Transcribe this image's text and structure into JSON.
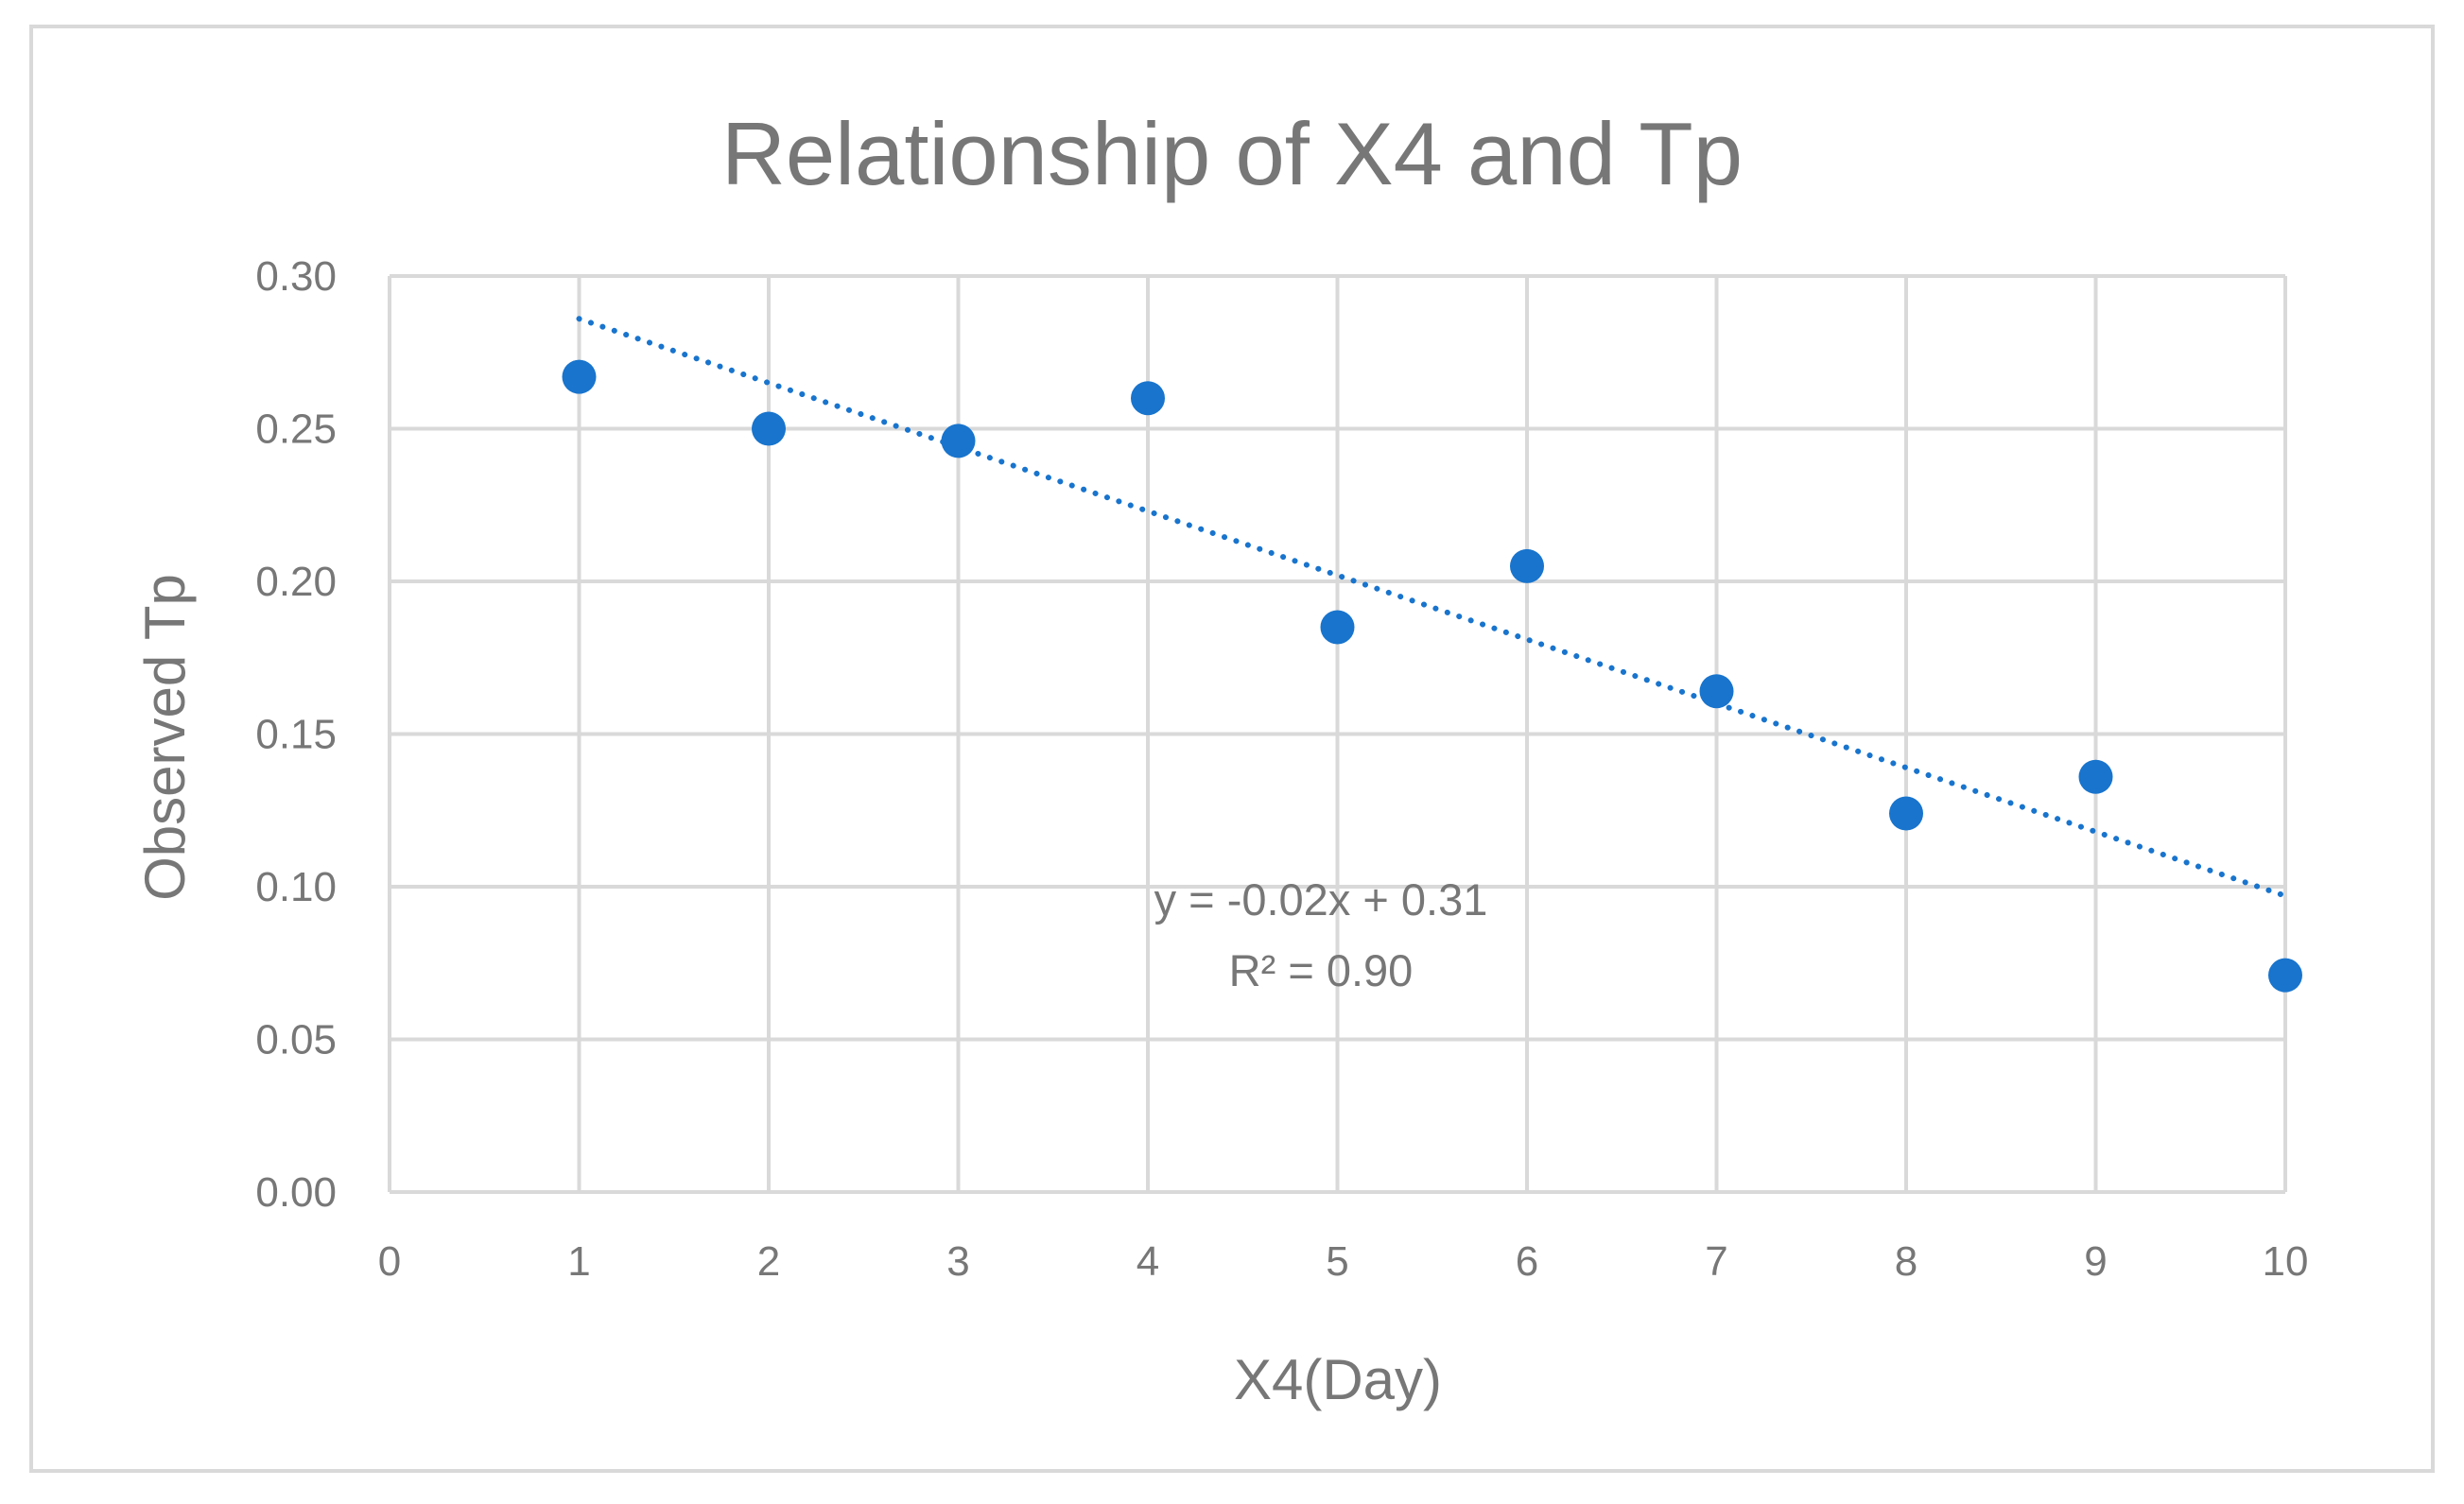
{
  "chart_data": {
    "type": "scatter",
    "title": "Relationship of X4 and Tp",
    "xlabel": "X4(Day)",
    "ylabel": "Observed Tp",
    "xlim": [
      0,
      10
    ],
    "ylim": [
      0,
      0.3
    ],
    "x_ticks": [
      "0",
      "1",
      "2",
      "3",
      "4",
      "5",
      "6",
      "7",
      "8",
      "9",
      "10"
    ],
    "y_ticks": [
      "0.00",
      "0.05",
      "0.10",
      "0.15",
      "0.20",
      "0.25",
      "0.30"
    ],
    "grid": true,
    "series": [
      {
        "points": [
          {
            "x": 1,
            "y": 0.267
          },
          {
            "x": 2,
            "y": 0.25
          },
          {
            "x": 3,
            "y": 0.246
          },
          {
            "x": 4,
            "y": 0.26
          },
          {
            "x": 5,
            "y": 0.185
          },
          {
            "x": 6,
            "y": 0.205
          },
          {
            "x": 7,
            "y": 0.164
          },
          {
            "x": 8,
            "y": 0.124
          },
          {
            "x": 9,
            "y": 0.136
          },
          {
            "x": 10,
            "y": 0.071
          }
        ]
      }
    ],
    "trendline": {
      "type": "linear",
      "style": "dotted",
      "x_range": [
        1,
        10
      ],
      "y_start": 0.286,
      "y_end": 0.097,
      "equation": "y = -0.02x + 0.31",
      "r2_label": "R² = 0.90"
    },
    "colors": {
      "marker": "#1874CD",
      "trendline": "#1874CD",
      "grid": "#D9D9D9",
      "text": "#777777",
      "border": "#D9D9D9"
    }
  }
}
